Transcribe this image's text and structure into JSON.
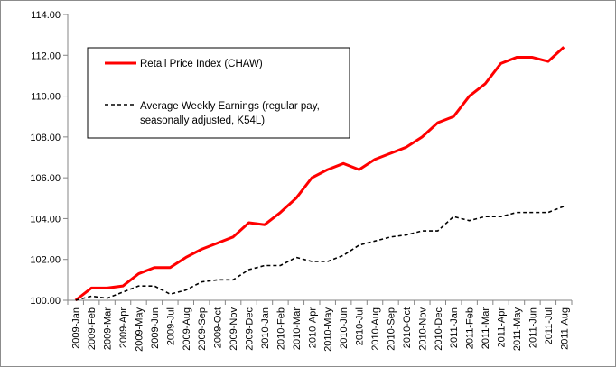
{
  "chart_data": {
    "type": "line",
    "title": "",
    "xlabel": "",
    "ylabel": "",
    "ylim": [
      100,
      114
    ],
    "y_ticks": [
      "100.00",
      "102.00",
      "104.00",
      "106.00",
      "108.00",
      "110.00",
      "112.00",
      "114.00"
    ],
    "grid": false,
    "legend_position": "top-left",
    "categories": [
      "2009-Jan",
      "2009-Feb",
      "2009-Mar",
      "2009-Apr",
      "2009-May",
      "2009-Jun",
      "2009-Jul",
      "2009-Aug",
      "2009-Sep",
      "2009-Oct",
      "2009-Nov",
      "2009-Dec",
      "2010-Jan",
      "2010-Feb",
      "2010-Mar",
      "2010-Apr",
      "2010-May",
      "2010-Jun",
      "2010-Jul",
      "2010-Aug",
      "2010-Sep",
      "2010-Oct",
      "2010-Nov",
      "2010-Dec",
      "2011-Jan",
      "2011-Feb",
      "2011-Mar",
      "2011-Apr",
      "2011-May",
      "2011-Jun",
      "2011-Jul",
      "2011-Aug"
    ],
    "series": [
      {
        "name": "Retail Price Index (CHAW)",
        "color": "#ff0000",
        "style": "solid",
        "values": [
          100.0,
          100.6,
          100.6,
          100.7,
          101.3,
          101.6,
          101.6,
          102.1,
          102.5,
          102.8,
          103.1,
          103.8,
          103.7,
          104.3,
          105.0,
          106.0,
          106.4,
          106.7,
          106.4,
          106.9,
          107.2,
          107.5,
          108.0,
          108.7,
          109.0,
          110.0,
          110.6,
          111.6,
          111.9,
          111.9,
          111.7,
          112.4
        ]
      },
      {
        "name": "Average Weekly Earnings (regular pay, seasonally adjusted, K54L)",
        "name_lines": [
          "Average Weekly Earnings (regular pay,",
          "seasonally adjusted, K54L)"
        ],
        "color": "#000000",
        "style": "dashed",
        "values": [
          100.0,
          100.2,
          100.1,
          100.4,
          100.7,
          100.7,
          100.3,
          100.5,
          100.9,
          101.0,
          101.0,
          101.5,
          101.7,
          101.7,
          102.1,
          101.9,
          101.9,
          102.2,
          102.7,
          102.9,
          103.1,
          103.2,
          103.4,
          103.4,
          104.1,
          103.9,
          104.1,
          104.1,
          104.3,
          104.3,
          104.3,
          104.6
        ]
      }
    ]
  }
}
